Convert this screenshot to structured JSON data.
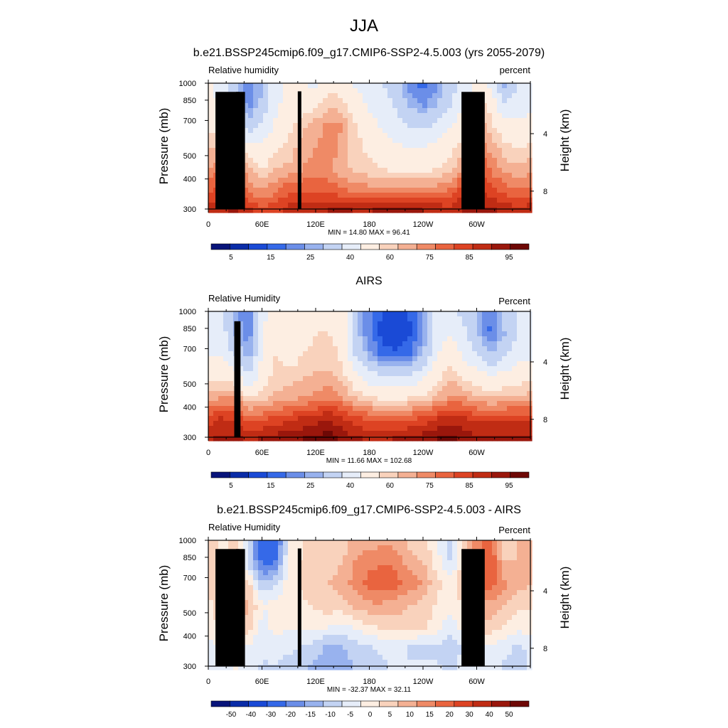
{
  "title": "JJA",
  "colormaps": {
    "abs": [
      "#08147a",
      "#0a2ca8",
      "#1a4ad6",
      "#3569e8",
      "#6b8ee8",
      "#98b2ee",
      "#c3d3f3",
      "#e6edf9",
      "#fdeee2",
      "#f9d2bc",
      "#f4b093",
      "#ef8a66",
      "#e9643f",
      "#dd4323",
      "#c02c14",
      "#9a170c",
      "#6e0805"
    ],
    "diff": [
      "#08147a",
      "#0a2ca8",
      "#1a4ad6",
      "#3569e8",
      "#6b8ee8",
      "#98b2ee",
      "#c3d3f3",
      "#e6edf9",
      "#fdeee2",
      "#f9d2bc",
      "#f4b093",
      "#ef8a66",
      "#e9643f",
      "#dd4323",
      "#c02c14",
      "#9a170c",
      "#6e0805"
    ]
  },
  "chart_data": [
    {
      "type": "heatmap",
      "title": "b.e21.BSSP245cmip6.f09_g17.CMIP6-SSP2-4.5.003 (yrs 2055-2079)",
      "left_string": "Relative humidity",
      "right_string": "percent",
      "ylabel": "Pressure (mb)",
      "ylabel_right": "Height (km)",
      "xticks": [
        "0",
        "60E",
        "120E",
        "180",
        "120W",
        "60W"
      ],
      "xtick_values": [
        0,
        60,
        120,
        180,
        240,
        300
      ],
      "xlim": [
        0,
        360
      ],
      "yticks": [
        "300",
        "400",
        "500",
        "700",
        "850",
        "1000"
      ],
      "ytick_values": [
        300,
        400,
        500,
        700,
        850,
        1000
      ],
      "ylim_log_pressure": [
        1000,
        300
      ],
      "yticks_right": [
        "8",
        "4"
      ],
      "ytick_right_pressures": [
        356,
        617
      ],
      "minmax": "MIN = 14.80  MAX = 96.41",
      "colorbar": "abs",
      "colorbar_labels": [
        "5",
        "15",
        "25",
        "40",
        "60",
        "75",
        "85",
        "95"
      ],
      "values": [
        [
          52,
          46,
          34,
          20,
          30,
          46,
          52,
          50,
          48,
          58,
          56,
          48,
          44,
          40,
          34,
          22,
          18,
          24,
          36,
          44,
          52,
          46,
          28,
          40,
          42
        ],
        [
          54,
          48,
          36,
          22,
          32,
          48,
          54,
          56,
          58,
          64,
          62,
          54,
          48,
          44,
          38,
          28,
          24,
          30,
          40,
          50,
          64,
          56,
          40,
          46,
          48
        ],
        [
          58,
          56,
          46,
          34,
          42,
          52,
          58,
          64,
          68,
          72,
          70,
          60,
          54,
          48,
          44,
          40,
          38,
          42,
          50,
          58,
          70,
          62,
          54,
          52,
          54
        ],
        [
          64,
          66,
          62,
          54,
          52,
          58,
          62,
          68,
          70,
          72,
          68,
          62,
          58,
          54,
          52,
          50,
          50,
          54,
          58,
          64,
          76,
          68,
          62,
          60,
          62
        ],
        [
          70,
          76,
          78,
          66,
          60,
          66,
          66,
          70,
          72,
          72,
          66,
          64,
          62,
          60,
          58,
          58,
          58,
          60,
          64,
          72,
          82,
          74,
          68,
          66,
          68
        ],
        [
          78,
          84,
          86,
          74,
          70,
          74,
          80,
          80,
          78,
          78,
          76,
          74,
          72,
          72,
          72,
          72,
          72,
          74,
          76,
          84,
          86,
          82,
          78,
          76,
          78
        ],
        [
          88,
          90,
          92,
          88,
          84,
          84,
          88,
          90,
          90,
          92,
          92,
          92,
          92,
          94,
          94,
          94,
          92,
          92,
          88,
          92,
          94,
          92,
          90,
          88,
          90
        ]
      ],
      "land": [
        {
          "lon": [
            8,
            35
          ],
          "p_top": 920
        },
        {
          "lon": [
            24,
            31
          ],
          "p_top": 870
        },
        {
          "lon": [
            31,
            41
          ],
          "p_top": 920
        },
        {
          "lon": [
            100,
            104
          ],
          "p_top": 925
        },
        {
          "lon": [
            283,
            309
          ],
          "p_top": 920
        }
      ]
    },
    {
      "type": "heatmap",
      "title": "AIRS",
      "left_string": "Relative Humidity",
      "right_string": "Percent",
      "ylabel": "Pressure (mb)",
      "ylabel_right": "Height (km)",
      "xticks": [
        "0",
        "60E",
        "120E",
        "180",
        "120W",
        "60W"
      ],
      "xtick_values": [
        0,
        60,
        120,
        180,
        240,
        300
      ],
      "xlim": [
        0,
        360
      ],
      "yticks": [
        "300",
        "400",
        "500",
        "700",
        "850",
        "1000"
      ],
      "ytick_values": [
        300,
        400,
        500,
        700,
        850,
        1000
      ],
      "ylim_log_pressure": [
        1000,
        300
      ],
      "yticks_right": [
        "8",
        "4"
      ],
      "ytick_right_pressures": [
        356,
        617
      ],
      "minmax": "MIN =  11.66  MAX = 102.68",
      "colorbar": "abs",
      "colorbar_labels": [
        "5",
        "15",
        "25",
        "40",
        "60",
        "75",
        "85",
        "95"
      ],
      "values": [
        [
          44,
          42,
          28,
          18,
          46,
          58,
          52,
          54,
          58,
          58,
          58,
          30,
          20,
          14,
          12,
          16,
          28,
          44,
          44,
          36,
          28,
          20,
          32,
          40,
          40
        ],
        [
          46,
          44,
          30,
          20,
          48,
          60,
          54,
          56,
          60,
          60,
          58,
          32,
          20,
          12,
          10,
          14,
          26,
          46,
          50,
          42,
          30,
          18,
          30,
          42,
          44
        ],
        [
          50,
          48,
          38,
          26,
          52,
          60,
          56,
          60,
          62,
          62,
          58,
          38,
          26,
          18,
          16,
          20,
          30,
          50,
          56,
          48,
          40,
          30,
          38,
          46,
          48
        ],
        [
          58,
          58,
          54,
          40,
          56,
          62,
          62,
          64,
          66,
          66,
          62,
          52,
          44,
          40,
          40,
          42,
          48,
          58,
          64,
          58,
          54,
          50,
          54,
          56,
          58
        ],
        [
          68,
          70,
          70,
          60,
          62,
          66,
          68,
          70,
          72,
          74,
          70,
          64,
          60,
          58,
          58,
          60,
          62,
          66,
          72,
          70,
          66,
          64,
          66,
          66,
          68
        ],
        [
          82,
          86,
          84,
          78,
          80,
          82,
          84,
          86,
          88,
          90,
          86,
          82,
          80,
          78,
          78,
          80,
          82,
          86,
          88,
          86,
          84,
          84,
          84,
          84,
          84
        ],
        [
          90,
          92,
          92,
          90,
          92,
          94,
          94,
          96,
          98,
          98,
          94,
          92,
          90,
          90,
          92,
          92,
          94,
          96,
          98,
          94,
          92,
          92,
          92,
          92,
          92
        ]
      ],
      "land": [
        {
          "lon": [
            29,
            36
          ],
          "p_top": 910
        }
      ]
    },
    {
      "type": "heatmap",
      "title": "b.e21.BSSP245cmip6.f09_g17.CMIP6-SSP2-4.5.003 - AIRS",
      "left_string": "Relative Humidity",
      "right_string": "Percent",
      "ylabel": "Pressure (mb)",
      "ylabel_right": "Height (km)",
      "xticks": [
        "0",
        "60E",
        "120E",
        "180",
        "120W",
        "60W"
      ],
      "xtick_values": [
        0,
        60,
        120,
        180,
        240,
        300
      ],
      "xlim": [
        0,
        360
      ],
      "yticks": [
        "300",
        "400",
        "500",
        "700",
        "850",
        "1000"
      ],
      "ytick_values": [
        300,
        400,
        500,
        700,
        850,
        1000
      ],
      "ylim_log_pressure": [
        1000,
        300
      ],
      "yticks_right": [
        "8",
        "4"
      ],
      "ytick_right_pressures": [
        356,
        617
      ],
      "minmax": "MIN = -32.37  MAX =  32.11",
      "colorbar": "diff",
      "colorbar_labels": [
        "-50",
        "-40",
        "-30",
        "-20",
        "-15",
        "-10",
        "-5",
        "0",
        "5",
        "10",
        "15",
        "20",
        "30",
        "40",
        "50"
      ],
      "values": [
        [
          8,
          4,
          6,
          -6,
          -26,
          -24,
          0,
          4,
          10,
          8,
          8,
          12,
          12,
          14,
          12,
          8,
          6,
          0,
          -8,
          8,
          18,
          22,
          6,
          10,
          12
        ],
        [
          8,
          4,
          6,
          -8,
          -22,
          -20,
          2,
          6,
          10,
          8,
          10,
          16,
          18,
          20,
          18,
          12,
          10,
          2,
          -6,
          8,
          20,
          24,
          10,
          10,
          12
        ],
        [
          6,
          6,
          10,
          6,
          -10,
          -6,
          4,
          6,
          8,
          10,
          12,
          18,
          22,
          24,
          22,
          18,
          14,
          6,
          2,
          10,
          22,
          22,
          16,
          12,
          10
        ],
        [
          4,
          8,
          10,
          12,
          0,
          2,
          2,
          4,
          6,
          8,
          8,
          12,
          14,
          14,
          12,
          10,
          8,
          4,
          2,
          6,
          14,
          14,
          10,
          6,
          6
        ],
        [
          2,
          6,
          10,
          8,
          -2,
          2,
          0,
          2,
          2,
          0,
          -2,
          2,
          4,
          6,
          8,
          8,
          6,
          2,
          -4,
          4,
          10,
          8,
          4,
          2,
          2
        ],
        [
          -2,
          0,
          2,
          -2,
          -4,
          -2,
          -4,
          -6,
          -8,
          -12,
          -10,
          -8,
          -6,
          -4,
          -4,
          -6,
          -8,
          -6,
          -8,
          -4,
          0,
          -2,
          -4,
          -6,
          -4
        ],
        [
          -2,
          -2,
          0,
          -2,
          -6,
          -6,
          -8,
          -10,
          -12,
          -14,
          -12,
          -10,
          -8,
          -6,
          -4,
          -4,
          -2,
          -4,
          -6,
          -2,
          -2,
          -4,
          -6,
          -6,
          -4
        ]
      ],
      "land": [
        {
          "lon": [
            8,
            35
          ],
          "p_top": 920
        },
        {
          "lon": [
            24,
            31
          ],
          "p_top": 870
        },
        {
          "lon": [
            31,
            41
          ],
          "p_top": 920
        },
        {
          "lon": [
            100,
            104
          ],
          "p_top": 925
        },
        {
          "lon": [
            283,
            309
          ],
          "p_top": 920
        }
      ]
    }
  ]
}
